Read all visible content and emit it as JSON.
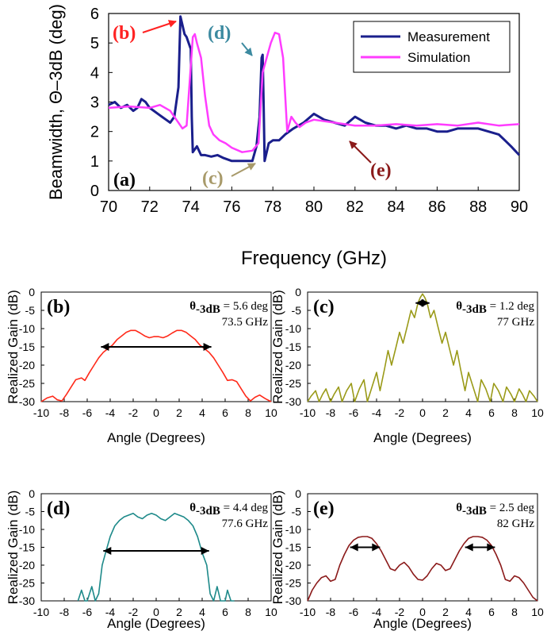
{
  "chart_data": [
    {
      "id": "a",
      "type": "line",
      "panel_label": "(a)",
      "xlabel": "Frequency (GHz)",
      "ylabel": "Beamwidth, Θ–3dB (deg)",
      "xlim": [
        70,
        90
      ],
      "ylim": [
        0,
        6
      ],
      "xticks": [
        "70",
        "72",
        "74",
        "76",
        "78",
        "80",
        "82",
        "84",
        "86",
        "88",
        "90"
      ],
      "yticks": [
        "0",
        "1",
        "2",
        "3",
        "4",
        "5",
        "6"
      ],
      "legend_position": "top-right",
      "series": [
        {
          "name": "Measurement",
          "color": "#1a1f8c",
          "x": [
            70,
            70.3,
            70.6,
            70.9,
            71.2,
            71.4,
            71.6,
            71.8,
            72,
            72.2,
            72.4,
            72.6,
            72.8,
            73,
            73.2,
            73.4,
            73.5,
            73.6,
            73.7,
            73.8,
            73.9,
            74,
            74.05,
            74.1,
            74.3,
            74.5,
            74.7,
            75,
            75.3,
            75.6,
            76,
            76.3,
            76.6,
            77,
            77.2,
            77.35,
            77.45,
            77.5,
            77.55,
            77.6,
            77.7,
            77.8,
            78,
            78.3,
            78.6,
            79,
            79.5,
            80,
            80.5,
            81,
            81.5,
            82,
            82.5,
            83,
            83.5,
            84,
            84.5,
            85,
            85.5,
            86,
            86.5,
            87,
            87.5,
            88,
            88.5,
            89,
            89.3,
            89.6,
            90
          ],
          "y": [
            2.9,
            3.0,
            2.8,
            2.9,
            2.7,
            2.8,
            3.1,
            3.0,
            2.8,
            2.7,
            2.6,
            2.5,
            2.4,
            2.3,
            2.5,
            3.5,
            5.9,
            5.6,
            5.3,
            5.2,
            5.0,
            4.8,
            2.5,
            1.3,
            1.5,
            1.2,
            1.2,
            1.15,
            1.2,
            1.1,
            1.0,
            1.0,
            1.0,
            1.0,
            1.5,
            2.5,
            4.5,
            4.6,
            3.0,
            1.0,
            1.3,
            1.6,
            1.7,
            1.7,
            1.9,
            2.1,
            2.3,
            2.6,
            2.4,
            2.3,
            2.2,
            2.5,
            2.3,
            2.2,
            2.2,
            2.1,
            2.2,
            2.1,
            2.1,
            2.0,
            2.0,
            2.1,
            2.1,
            2.1,
            2.0,
            1.9,
            1.7,
            1.5,
            1.2
          ]
        },
        {
          "name": "Simulation",
          "color": "#ff3cff",
          "x": [
            70,
            71,
            72,
            72.5,
            73,
            73.3,
            73.6,
            73.8,
            74,
            74.1,
            74.2,
            74.3,
            74.5,
            74.7,
            74.9,
            75.1,
            75.4,
            75.7,
            76,
            76.5,
            77,
            77.3,
            77.5,
            77.7,
            77.9,
            78.1,
            78.3,
            78.5,
            78.7,
            78.9,
            79.1,
            79.3,
            79.6,
            80,
            80.5,
            81,
            81.5,
            82,
            83,
            84,
            85,
            86,
            87,
            88,
            89,
            90
          ],
          "y": [
            2.8,
            2.85,
            2.8,
            2.9,
            2.7,
            2.4,
            2.1,
            2.2,
            4.2,
            5.2,
            5.3,
            5.0,
            4.5,
            3.2,
            2.2,
            1.9,
            1.7,
            1.6,
            1.45,
            1.3,
            1.35,
            1.6,
            4.0,
            4.5,
            5.0,
            5.35,
            5.3,
            4.5,
            2.0,
            2.5,
            2.3,
            2.15,
            2.3,
            2.4,
            2.35,
            2.3,
            2.25,
            2.2,
            2.2,
            2.25,
            2.2,
            2.25,
            2.2,
            2.3,
            2.2,
            2.25
          ]
        }
      ],
      "annotations": [
        {
          "label": "(b)",
          "color": "#ff2222"
        },
        {
          "label": "(c)",
          "color": "#a89a6a"
        },
        {
          "label": "(d)",
          "color": "#3c8aa0"
        },
        {
          "label": "(e)",
          "color": "#8b1a1a"
        }
      ]
    },
    {
      "id": "b",
      "type": "line",
      "panel_label": "(b)",
      "panel_label_color": "#000000",
      "xlabel": "Angle (Degrees)",
      "ylabel": "Realized Gain (dB)",
      "xlim": [
        -10,
        10
      ],
      "ylim": [
        -30,
        0
      ],
      "xticks": [
        "-10",
        "-8",
        "-6",
        "-4",
        "-2",
        "0",
        "2",
        "4",
        "6",
        "8",
        "10"
      ],
      "yticks": [
        "0",
        "-5",
        "-10",
        "-15",
        "-20",
        "-25",
        "-30"
      ],
      "beamwidth": "5.6 deg",
      "frequency": "73.5 GHz",
      "arrows": [
        [
          -4.8,
          4.8
        ]
      ],
      "arrow_level": -15,
      "series": [
        {
          "color": "#ff2a1a",
          "x": [
            -10,
            -9.5,
            -9,
            -8.6,
            -8.2,
            -7.8,
            -7.4,
            -7,
            -6.5,
            -6.2,
            -5.8,
            -5.4,
            -5,
            -4.6,
            -4.2,
            -3.8,
            -3.4,
            -3,
            -2.6,
            -2.2,
            -1.8,
            -1.4,
            -1,
            -0.6,
            -0.2,
            0.2,
            0.6,
            1,
            1.4,
            1.8,
            2.2,
            2.6,
            3,
            3.4,
            3.8,
            4.2,
            4.6,
            5,
            5.4,
            5.8,
            6.2,
            6.6,
            7,
            7.4,
            7.8,
            8.2,
            8.6,
            9,
            9.5,
            10
          ],
          "y": [
            -30,
            -29,
            -28.5,
            -29.5,
            -29.8,
            -28,
            -26,
            -24,
            -23.5,
            -24.2,
            -22,
            -20,
            -18,
            -16.5,
            -15.5,
            -14.5,
            -13,
            -12,
            -11,
            -10.5,
            -10.5,
            -11.2,
            -12,
            -12.5,
            -12.2,
            -12.2,
            -12.5,
            -12,
            -11.2,
            -10.5,
            -10.5,
            -11,
            -12,
            -13,
            -14.5,
            -15.5,
            -16.5,
            -18,
            -20,
            -22,
            -24.2,
            -24,
            -24.5,
            -26.5,
            -28.5,
            -29.8,
            -28.8,
            -28.2,
            -29.2,
            -30
          ]
        }
      ]
    },
    {
      "id": "c",
      "type": "line",
      "panel_label": "(c)",
      "xlabel": "Angle (Degrees)",
      "ylabel": "Realized Gain (dB)",
      "xlim": [
        -10,
        10
      ],
      "ylim": [
        -30,
        0
      ],
      "xticks": [
        "-10",
        "-8",
        "-6",
        "-4",
        "-2",
        "0",
        "2",
        "4",
        "6",
        "8",
        "10"
      ],
      "yticks": [
        "0",
        "-5",
        "-10",
        "-15",
        "-20",
        "-25",
        "-30"
      ],
      "beamwidth": "1.2 deg",
      "frequency": "77 GHz",
      "arrows": [
        [
          -0.6,
          0.6
        ]
      ],
      "arrow_level": -3,
      "series": [
        {
          "color": "#9a9a18",
          "x": [
            -10,
            -9.7,
            -9.3,
            -9,
            -8.7,
            -8.4,
            -8,
            -7.7,
            -7.3,
            -7,
            -6.6,
            -6.2,
            -5.9,
            -5.5,
            -5.1,
            -4.8,
            -4.4,
            -4,
            -3.7,
            -3.3,
            -3,
            -2.7,
            -2.3,
            -2,
            -1.7,
            -1.3,
            -1,
            -0.7,
            -0.4,
            -0.2,
            0,
            0.2,
            0.4,
            0.7,
            1,
            1.3,
            1.7,
            2,
            2.3,
            2.7,
            3,
            3.3,
            3.7,
            4,
            4.4,
            4.8,
            5.1,
            5.5,
            5.9,
            6.2,
            6.6,
            7,
            7.3,
            7.7,
            8,
            8.4,
            8.7,
            9,
            9.3,
            9.7,
            10
          ],
          "y": [
            -30,
            -28.5,
            -27,
            -30,
            -28,
            -26.5,
            -30,
            -28,
            -26,
            -30,
            -27,
            -25,
            -30,
            -26.5,
            -24,
            -30,
            -26,
            -22,
            -27,
            -21,
            -16,
            -20,
            -15,
            -11,
            -14,
            -9,
            -5,
            -7,
            -3,
            -1.5,
            -0.5,
            -1.5,
            -3,
            -7,
            -5,
            -9,
            -14,
            -11,
            -15,
            -20,
            -16,
            -21,
            -27,
            -22,
            -26,
            -30,
            -24,
            -26.5,
            -30,
            -25,
            -27,
            -30,
            -26,
            -28,
            -30,
            -26.5,
            -28,
            -30,
            -27,
            -28.5,
            -30
          ]
        }
      ]
    },
    {
      "id": "d",
      "type": "line",
      "panel_label": "(d)",
      "xlabel": "Angle (Degrees)",
      "ylabel": "Realized Gain (dB)",
      "xlim": [
        -10,
        10
      ],
      "ylim": [
        -30,
        0
      ],
      "xticks": [
        "-10",
        "-8",
        "-6",
        "-4",
        "-2",
        "0",
        "2",
        "4",
        "6",
        "8",
        "10"
      ],
      "yticks": [
        "0",
        "-5",
        "-10",
        "-15",
        "-20",
        "-25",
        "-30"
      ],
      "beamwidth": "4.4 deg",
      "frequency": "77.6 GHz",
      "arrows": [
        [
          -4.6,
          4.6
        ]
      ],
      "arrow_level": -16,
      "series": [
        {
          "color": "#1e8a8a",
          "x": [
            -6.8,
            -6.5,
            -6.2,
            -6,
            -5.6,
            -5.3,
            -5,
            -4.7,
            -4.4,
            -4,
            -3.6,
            -3.2,
            -2.8,
            -2.4,
            -2,
            -1.6,
            -1.2,
            -0.8,
            -0.4,
            0,
            0.4,
            0.8,
            1.2,
            1.6,
            2,
            2.4,
            2.8,
            3.2,
            3.6,
            4,
            4.4,
            4.7,
            5,
            5.3,
            5.6,
            6,
            6.2,
            6.5,
            6.8
          ],
          "y": [
            -30,
            -27,
            -30,
            -30,
            -26,
            -30,
            -28,
            -20,
            -16.5,
            -12,
            -9,
            -7.5,
            -6.5,
            -6,
            -5.5,
            -6.5,
            -7,
            -6,
            -5.5,
            -6,
            -7,
            -7.5,
            -6.5,
            -5.5,
            -6,
            -6.5,
            -7.5,
            -9,
            -12,
            -16.5,
            -20,
            -28,
            -30,
            -26,
            -30,
            -30,
            -27,
            -30,
            -30
          ]
        }
      ]
    },
    {
      "id": "e",
      "type": "line",
      "panel_label": "(e)",
      "xlabel": "Angle (Degrees)",
      "ylabel": "Realized Gain (dB)",
      "xlim": [
        -10,
        10
      ],
      "ylim": [
        -30,
        0
      ],
      "xticks": [
        "-10",
        "-8",
        "-6",
        "-4",
        "-2",
        "0",
        "2",
        "4",
        "6",
        "8",
        "10"
      ],
      "yticks": [
        "0",
        "-5",
        "-10",
        "-15",
        "-20",
        "-25",
        "-30"
      ],
      "beamwidth": "2.5 deg",
      "frequency": "82 GHz",
      "arrows": [
        [
          -6.3,
          -3.7
        ],
        [
          3.7,
          6.3
        ]
      ],
      "arrow_level": -15,
      "series": [
        {
          "color": "#8b1a1a",
          "x": [
            -10,
            -9.6,
            -9.2,
            -8.8,
            -8.4,
            -8,
            -7.6,
            -7.2,
            -6.8,
            -6.4,
            -6,
            -5.6,
            -5.2,
            -4.8,
            -4.4,
            -4,
            -3.6,
            -3.2,
            -2.8,
            -2.4,
            -2,
            -1.6,
            -1.2,
            -0.8,
            -0.4,
            0,
            0.4,
            0.8,
            1.2,
            1.6,
            2,
            2.4,
            2.8,
            3.2,
            3.6,
            4,
            4.4,
            4.8,
            5.2,
            5.6,
            6,
            6.4,
            6.8,
            7.2,
            7.6,
            8,
            8.4,
            8.8,
            9.2,
            9.6,
            10
          ],
          "y": [
            -30,
            -27,
            -25,
            -23.5,
            -23,
            -24.5,
            -24,
            -20,
            -17,
            -14.5,
            -13,
            -12.2,
            -12,
            -12,
            -12.5,
            -14,
            -16,
            -18.5,
            -21,
            -21.5,
            -20,
            -19.2,
            -20.5,
            -22.5,
            -24,
            -24.2,
            -23,
            -21,
            -19.5,
            -20,
            -21.5,
            -21,
            -18.5,
            -16,
            -14,
            -12.5,
            -12,
            -12,
            -12.2,
            -13,
            -14.5,
            -17,
            -20,
            -24,
            -24.5,
            -23,
            -23.5,
            -25,
            -27,
            -29,
            -30
          ]
        }
      ]
    }
  ]
}
